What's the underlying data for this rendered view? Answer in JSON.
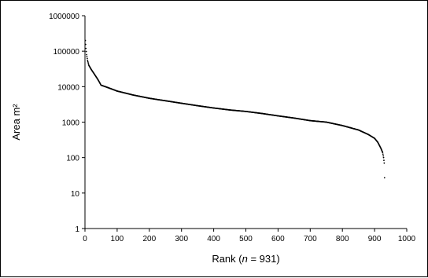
{
  "chart_data": {
    "type": "scatter",
    "xlabel_prefix": "Rank (",
    "xlabel_italic": "n",
    "xlabel_suffix": " = 931)",
    "ylabel": "Area m²",
    "xlim": [
      0,
      1000
    ],
    "ylim": [
      1,
      1000000
    ],
    "y_scale": "log",
    "grid": false,
    "legend": "none",
    "x_ticks": [
      0,
      100,
      200,
      300,
      400,
      500,
      600,
      700,
      800,
      900,
      1000
    ],
    "x_tick_labels": [
      "0",
      "100",
      "200",
      "300",
      "400",
      "500",
      "600",
      "700",
      "800",
      "900",
      "1000"
    ],
    "y_ticks": [
      1,
      10,
      100,
      1000,
      10000,
      100000,
      1000000
    ],
    "y_tick_labels": [
      "1",
      "10",
      "100",
      "1000",
      "10000",
      "100000",
      "1000000"
    ],
    "series": [
      {
        "color": "#000000",
        "n": 931,
        "profile": [
          [
            1,
            200000
          ],
          [
            3,
            120000
          ],
          [
            5,
            80000
          ],
          [
            8,
            55000
          ],
          [
            12,
            40000
          ],
          [
            20,
            30000
          ],
          [
            30,
            22000
          ],
          [
            40,
            16000
          ],
          [
            50,
            11000
          ],
          [
            70,
            9500
          ],
          [
            100,
            7500
          ],
          [
            150,
            5800
          ],
          [
            200,
            4700
          ],
          [
            250,
            4000
          ],
          [
            300,
            3400
          ],
          [
            350,
            2900
          ],
          [
            400,
            2500
          ],
          [
            450,
            2200
          ],
          [
            500,
            2000
          ],
          [
            550,
            1750
          ],
          [
            600,
            1500
          ],
          [
            650,
            1300
          ],
          [
            700,
            1100
          ],
          [
            750,
            1000
          ],
          [
            800,
            800
          ],
          [
            850,
            600
          ],
          [
            880,
            450
          ],
          [
            900,
            350
          ],
          [
            910,
            270
          ],
          [
            920,
            180
          ],
          [
            925,
            140
          ],
          [
            928,
            100
          ],
          [
            930,
            70
          ],
          [
            931,
            27
          ]
        ]
      }
    ]
  }
}
